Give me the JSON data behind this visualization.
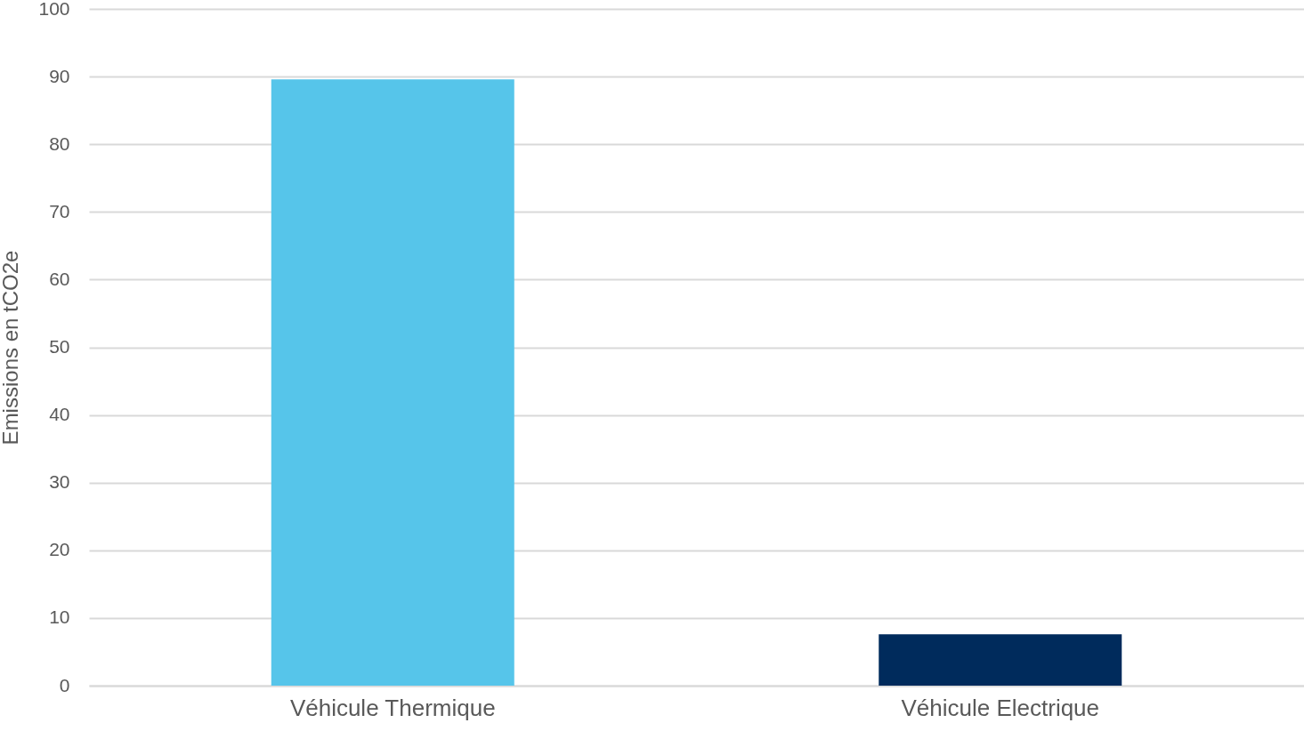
{
  "chart_data": {
    "type": "bar",
    "ylabel": "Emissions en tCO2e",
    "categories": [
      "Véhicule Thermique",
      "Véhicule Electrique"
    ],
    "values": [
      89.6,
      7.6
    ],
    "colors": [
      "#56c5ea",
      "#002b5c"
    ],
    "ylim": [
      0,
      100
    ],
    "yticks": [
      0,
      10,
      20,
      30,
      40,
      50,
      60,
      70,
      80,
      90,
      100
    ],
    "grid": "y"
  }
}
